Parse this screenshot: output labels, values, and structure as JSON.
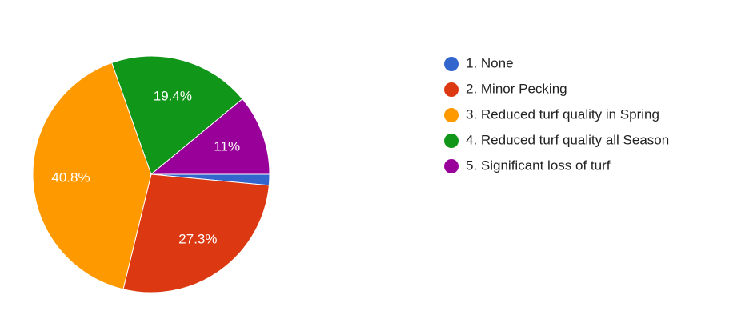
{
  "chart_data": {
    "type": "pie",
    "categories": [
      "1. None",
      "2. Minor Pecking",
      "3. Reduced turf quality in Spring",
      "4. Reduced turf quality all Season",
      "5. Significant loss of turf"
    ],
    "values": [
      1.5,
      27.3,
      40.8,
      19.4,
      11
    ],
    "value_labels": [
      null,
      "27.3%",
      "40.8%",
      "19.4%",
      "11%"
    ],
    "colors": [
      "#3366cc",
      "#dc3912",
      "#ff9900",
      "#109618",
      "#990099"
    ],
    "legend": "right"
  }
}
